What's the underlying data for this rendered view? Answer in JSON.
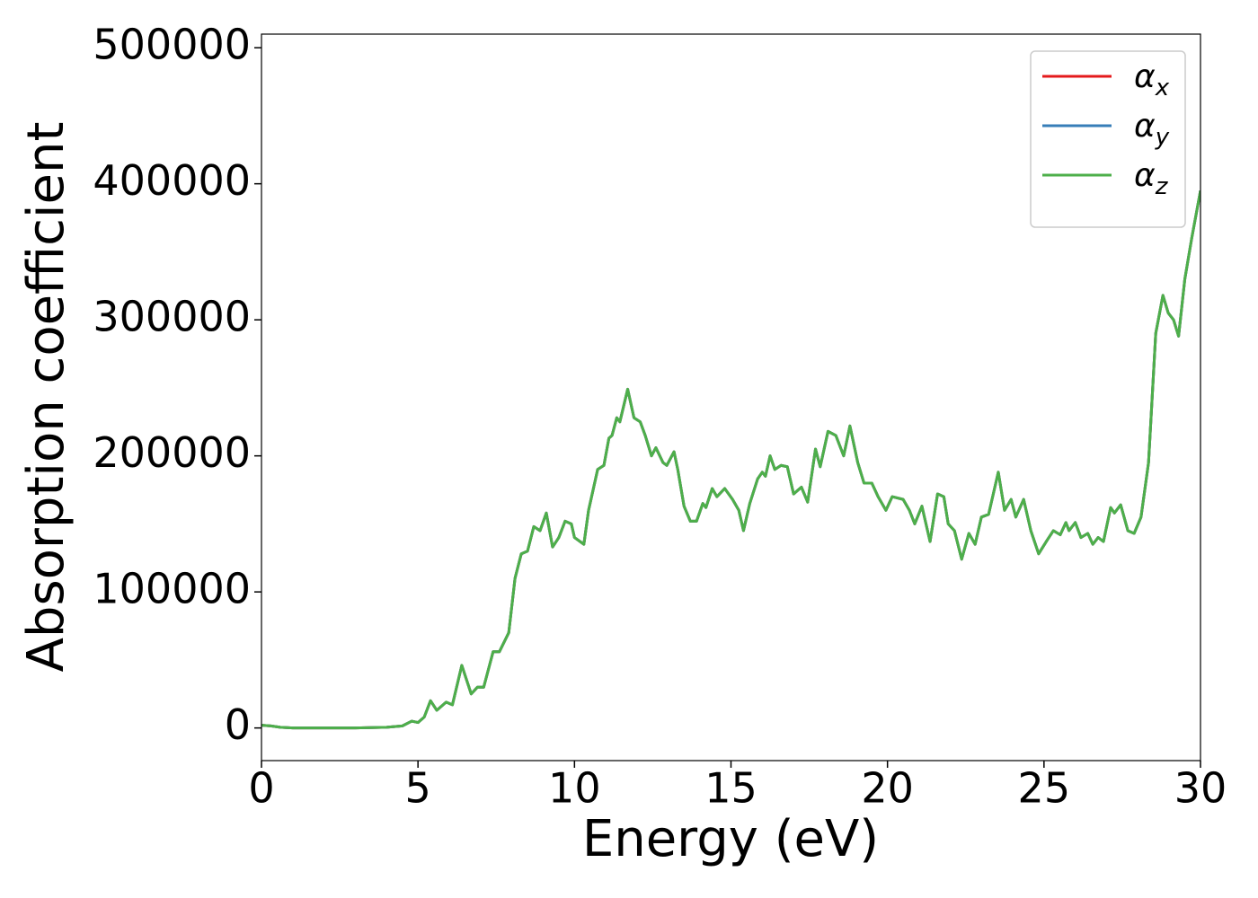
{
  "chart_data": {
    "type": "line",
    "xlabel": "Energy (eV)",
    "ylabel": "Absorption coefficient",
    "xlim": [
      0,
      30
    ],
    "ylim": [
      -24000,
      510000
    ],
    "xticks": [
      0,
      5,
      10,
      15,
      20,
      25,
      30
    ],
    "yticks": [
      0,
      100000,
      200000,
      300000,
      400000,
      500000
    ],
    "legend": "upper right",
    "grid": false,
    "x": [
      0,
      0.3,
      0.6,
      1,
      2,
      3,
      4,
      4.5,
      4.8,
      5.0,
      5.2,
      5.4,
      5.6,
      5.9,
      6.1,
      6.4,
      6.7,
      6.9,
      7.1,
      7.4,
      7.6,
      7.9,
      8.1,
      8.3,
      8.5,
      8.7,
      8.9,
      9.1,
      9.3,
      9.5,
      9.7,
      9.9,
      10.0,
      10.3,
      10.45,
      10.74,
      10.94,
      11.1,
      11.2,
      11.35,
      11.45,
      11.7,
      11.9,
      12.1,
      12.26,
      12.46,
      12.6,
      12.83,
      12.95,
      13.18,
      13.3,
      13.5,
      13.7,
      13.9,
      14.1,
      14.2,
      14.4,
      14.55,
      14.8,
      15.05,
      15.25,
      15.4,
      15.6,
      15.85,
      16.0,
      16.1,
      16.25,
      16.4,
      16.6,
      16.8,
      17.0,
      17.25,
      17.45,
      17.7,
      17.85,
      18.1,
      18.35,
      18.6,
      18.8,
      19.05,
      19.25,
      19.5,
      19.7,
      19.95,
      20.15,
      20.5,
      20.7,
      20.87,
      21.1,
      21.36,
      21.6,
      21.8,
      21.94,
      22.14,
      22.37,
      22.6,
      22.8,
      23.0,
      23.23,
      23.54,
      23.74,
      23.95,
      24.1,
      24.35,
      24.58,
      24.83,
      25.1,
      25.3,
      25.52,
      25.7,
      25.8,
      26.0,
      26.18,
      26.4,
      26.56,
      26.73,
      26.9,
      27.13,
      27.25,
      27.45,
      27.68,
      27.88,
      28.1,
      28.34,
      28.57,
      28.8,
      28.97,
      29.14,
      29.3,
      29.5,
      29.72,
      30.0
    ],
    "series": [
      {
        "name": "αx",
        "color": "#e41a1c",
        "values": [
          2000,
          1500,
          500,
          0,
          0,
          0,
          500,
          1500,
          5000,
          4000,
          8000,
          20000,
          13000,
          19000,
          17000,
          46000,
          25000,
          30000,
          30000,
          56000,
          56000,
          70000,
          110000,
          128000,
          130000,
          148000,
          145000,
          158000,
          133000,
          140000,
          152000,
          150000,
          140000,
          135000,
          160000,
          190000,
          193000,
          213000,
          215000,
          228000,
          225000,
          249000,
          228000,
          225000,
          215000,
          200000,
          206000,
          195000,
          193000,
          203000,
          190000,
          163000,
          152000,
          152000,
          165000,
          162000,
          176000,
          170000,
          176000,
          168000,
          160000,
          145000,
          165000,
          183000,
          188000,
          185000,
          200000,
          190000,
          193000,
          192000,
          172000,
          177000,
          166000,
          205000,
          192000,
          218000,
          215000,
          200000,
          222000,
          195000,
          180000,
          180000,
          170000,
          160000,
          170000,
          168000,
          160000,
          150000,
          163000,
          137000,
          172000,
          170000,
          150000,
          145000,
          124000,
          143000,
          135000,
          155000,
          157000,
          188000,
          160000,
          168000,
          155000,
          168000,
          145000,
          128000,
          138000,
          145000,
          142000,
          151000,
          145000,
          151000,
          140000,
          143000,
          135000,
          140000,
          137000,
          162000,
          158000,
          164000,
          145000,
          143000,
          155000,
          195000,
          290000,
          318000,
          305000,
          300000,
          288000,
          330000,
          360000,
          395000
        ]
      },
      {
        "name": "αy",
        "color": "#377eb8",
        "values": [
          2000,
          1500,
          500,
          0,
          0,
          0,
          500,
          1500,
          5000,
          4000,
          8000,
          20000,
          13000,
          19000,
          17000,
          46000,
          25000,
          30000,
          30000,
          56000,
          56000,
          70000,
          110000,
          128000,
          130000,
          148000,
          145000,
          158000,
          133000,
          140000,
          152000,
          150000,
          140000,
          135000,
          160000,
          190000,
          193000,
          213000,
          215000,
          228000,
          225000,
          249000,
          228000,
          225000,
          215000,
          200000,
          206000,
          195000,
          193000,
          203000,
          190000,
          163000,
          152000,
          152000,
          165000,
          162000,
          176000,
          170000,
          176000,
          168000,
          160000,
          145000,
          165000,
          183000,
          188000,
          185000,
          200000,
          190000,
          193000,
          192000,
          172000,
          177000,
          166000,
          205000,
          192000,
          218000,
          215000,
          200000,
          222000,
          195000,
          180000,
          180000,
          170000,
          160000,
          170000,
          168000,
          160000,
          150000,
          163000,
          137000,
          172000,
          170000,
          150000,
          145000,
          124000,
          143000,
          135000,
          155000,
          157000,
          188000,
          160000,
          168000,
          155000,
          168000,
          145000,
          128000,
          138000,
          145000,
          142000,
          151000,
          145000,
          151000,
          140000,
          143000,
          135000,
          140000,
          137000,
          162000,
          158000,
          164000,
          145000,
          143000,
          155000,
          195000,
          290000,
          318000,
          305000,
          300000,
          288000,
          330000,
          360000,
          395000
        ]
      },
      {
        "name": "αz",
        "color": "#4daf4a",
        "values": [
          2000,
          1500,
          500,
          0,
          0,
          0,
          500,
          1500,
          5000,
          4000,
          8000,
          20000,
          13000,
          19000,
          17000,
          46000,
          25000,
          30000,
          30000,
          56000,
          56000,
          70000,
          110000,
          128000,
          130000,
          148000,
          145000,
          158000,
          133000,
          140000,
          152000,
          150000,
          140000,
          135000,
          160000,
          190000,
          193000,
          213000,
          215000,
          228000,
          225000,
          249000,
          228000,
          225000,
          215000,
          200000,
          206000,
          195000,
          193000,
          203000,
          190000,
          163000,
          152000,
          152000,
          165000,
          162000,
          176000,
          170000,
          176000,
          168000,
          160000,
          145000,
          165000,
          183000,
          188000,
          185000,
          200000,
          190000,
          193000,
          192000,
          172000,
          177000,
          166000,
          205000,
          192000,
          218000,
          215000,
          200000,
          222000,
          195000,
          180000,
          180000,
          170000,
          160000,
          170000,
          168000,
          160000,
          150000,
          163000,
          137000,
          172000,
          170000,
          150000,
          145000,
          124000,
          143000,
          135000,
          155000,
          157000,
          188000,
          160000,
          168000,
          155000,
          168000,
          145000,
          128000,
          138000,
          145000,
          142000,
          151000,
          145000,
          151000,
          140000,
          143000,
          135000,
          140000,
          137000,
          162000,
          158000,
          164000,
          145000,
          143000,
          155000,
          195000,
          290000,
          318000,
          305000,
          300000,
          288000,
          330000,
          360000,
          395000
        ]
      }
    ]
  }
}
